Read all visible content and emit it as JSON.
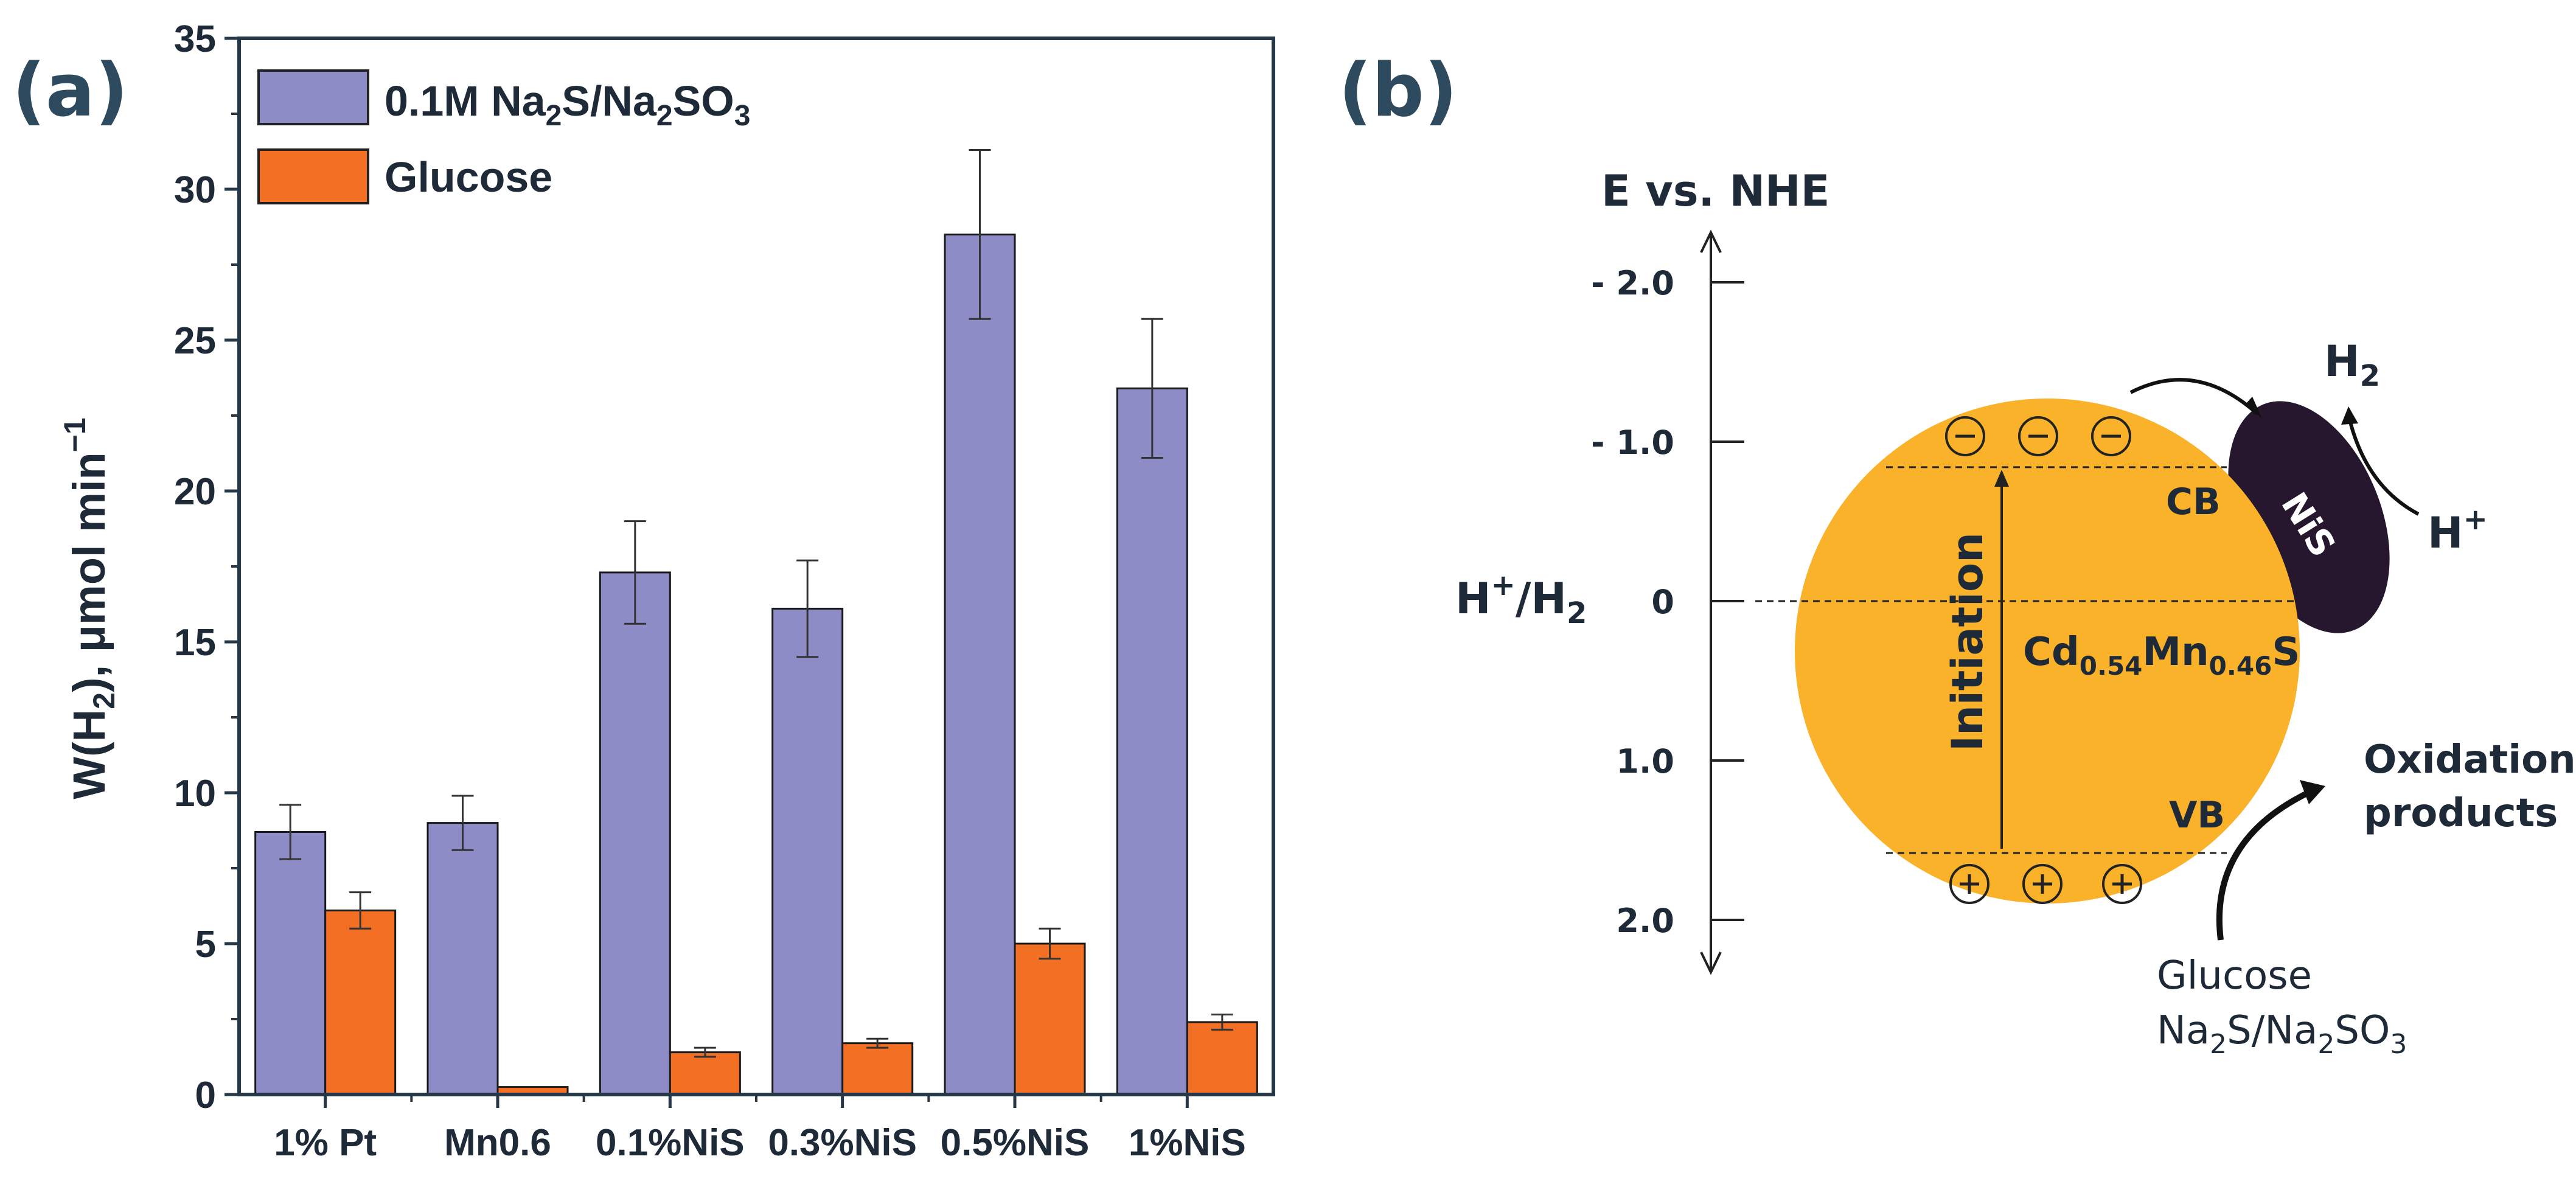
{
  "chart_data": {
    "type": "bar",
    "panel_label": "(a)",
    "ylabel": {
      "main": "W(H",
      "sub": "2",
      "rest": "), μmol min",
      "sup": "−1"
    },
    "ylim": [
      0,
      35
    ],
    "yticks": [
      0,
      5,
      10,
      15,
      20,
      25,
      30,
      35
    ],
    "categories": [
      "1% Pt",
      "Mn0.6",
      "0.1%NiS",
      "0.3%NiS",
      "0.5%NiS",
      "1%NiS"
    ],
    "legend_position": "top-left",
    "series": [
      {
        "name": "0.1M Na2S/Na2SO3",
        "legend": {
          "a": "0.1M Na",
          "s1": "2",
          "b": "S/Na",
          "s2": "2",
          "c": "SO",
          "s3": "3"
        },
        "color": "#8e8cc7",
        "values": [
          8.7,
          9.0,
          17.3,
          16.1,
          28.5,
          23.4
        ],
        "errors": [
          0.9,
          0.9,
          1.7,
          1.6,
          2.8,
          2.3
        ]
      },
      {
        "name": "Glucose",
        "legend": {
          "a": "Glucose"
        },
        "color": "#f26f24",
        "values": [
          6.1,
          0.25,
          1.4,
          1.7,
          5.0,
          2.4
        ],
        "errors": [
          0.6,
          0.0,
          0.15,
          0.15,
          0.5,
          0.25
        ]
      }
    ]
  },
  "diagram": {
    "panel_label": "(b)",
    "axis_title": "E vs. NHE",
    "ticks": [
      {
        "label": "- 2.0",
        "value": -2.0
      },
      {
        "label": "- 1.0",
        "value": -1.0
      },
      {
        "label": "0",
        "value": 0
      },
      {
        "label": "1.0",
        "value": 1.0
      },
      {
        "label": "2.0",
        "value": 2.0
      }
    ],
    "redox_label": {
      "a": "H",
      "sup": "+",
      "b": "/H",
      "sub": "2"
    },
    "cb_label": "CB",
    "vb_label": "VB",
    "cb_level": -0.84,
    "vb_level": 1.58,
    "initiation_label": "Initiation",
    "semiconductor": {
      "a": "Cd",
      "s1": "0.54",
      "b": "Mn",
      "s2": "0.46",
      "c": "S"
    },
    "cocatalyst_label": "NiS",
    "h2_label": {
      "a": "H",
      "sub": "2"
    },
    "hplus_label": {
      "a": "H",
      "sup": "+"
    },
    "oxidation_label": [
      "Oxidation",
      "products"
    ],
    "donor_label": {
      "line1": "Glucose",
      "a": "Na",
      "s1": "2",
      "b": "S/Na",
      "s2": "2",
      "c": "SO",
      "s3": "3"
    },
    "electron_symbol": "−",
    "hole_symbol": "+",
    "colors": {
      "particle": "#f9b22a",
      "cocatalyst": "#26172f",
      "text": "#1f2a38"
    }
  }
}
